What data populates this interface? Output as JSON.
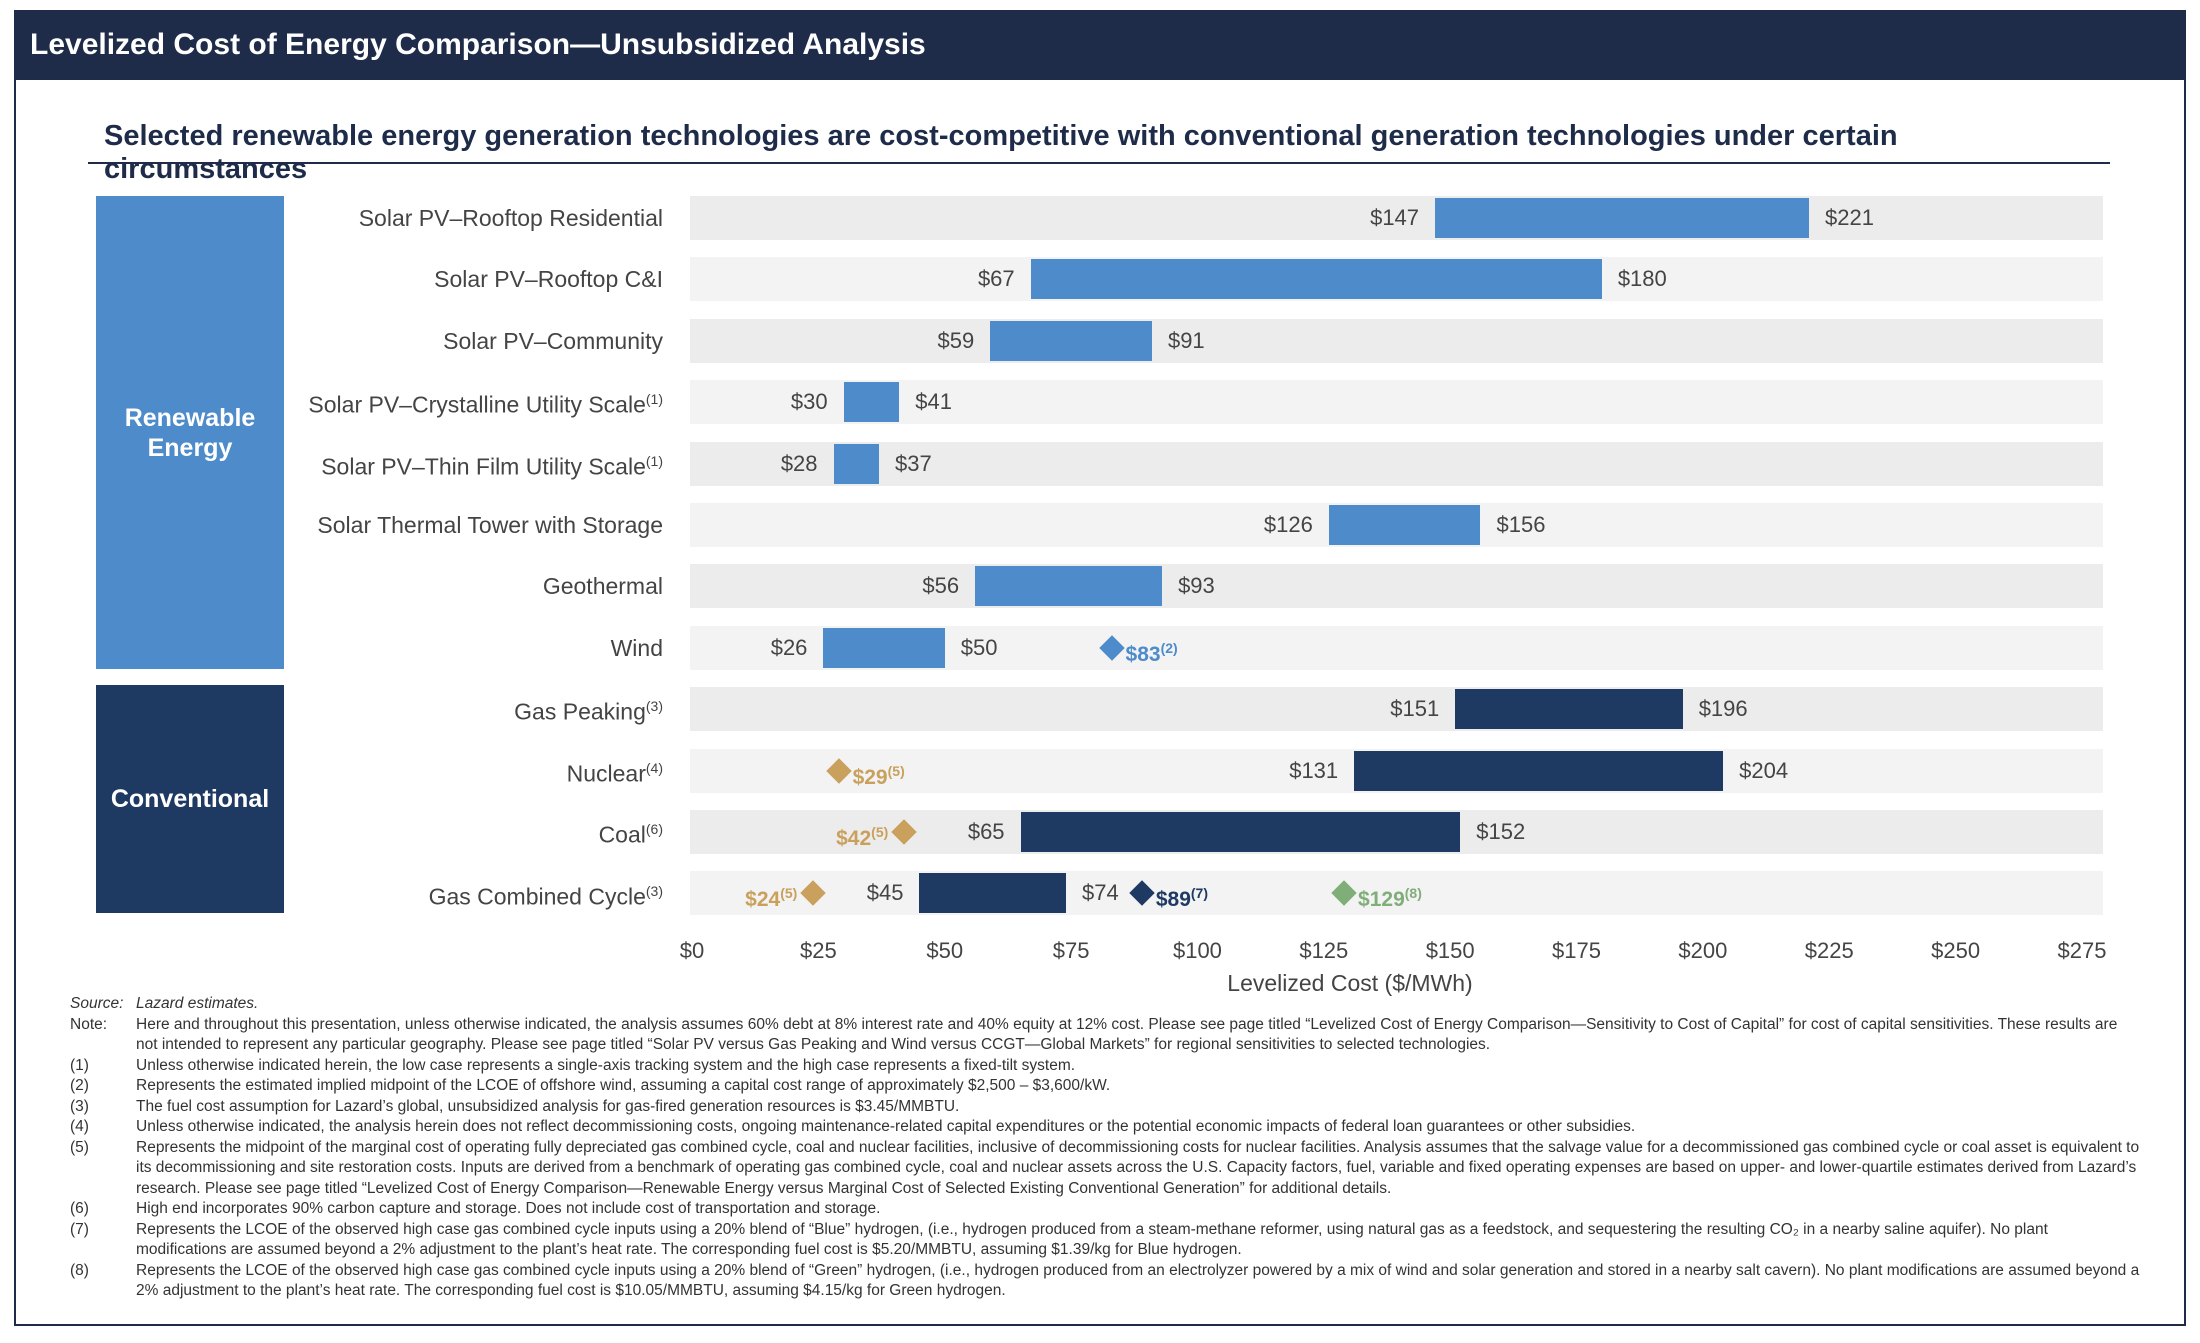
{
  "header": {
    "title": "Levelized Cost of Energy Comparison—Unsubsidized Analysis"
  },
  "subtitle": "Selected renewable energy generation technologies are cost-competitive with conventional generation technologies under certain circumstances",
  "groups": [
    {
      "label": "Renewable Energy",
      "color": "#4d8bcb"
    },
    {
      "label": "Conventional",
      "color": "#1e3a63"
    }
  ],
  "colors": {
    "renewable": "#4d8bcb",
    "conventional": "#1e3a63",
    "marker_gold": "#c9a05c",
    "marker_green": "#7fae78",
    "marker_blue": "#4d8bcb",
    "marker_navy": "#1e3a63"
  },
  "chart_data": {
    "type": "bar",
    "orientation": "horizontal-floating",
    "xlabel": "Levelized Cost ($/MWh)",
    "xlim": [
      0,
      275
    ],
    "xticks": [
      "$0",
      "$25",
      "$50",
      "$75",
      "$100",
      "$125",
      "$150",
      "$175",
      "$200",
      "$225",
      "$250",
      "$275"
    ],
    "rows": [
      {
        "label": "Solar PV–Rooftop Residential",
        "note": "",
        "group": "renewable",
        "low": 147,
        "high": 221,
        "low_label": "$147",
        "high_label": "$221",
        "markers": []
      },
      {
        "label": "Solar PV–Rooftop C&I",
        "note": "",
        "group": "renewable",
        "low": 67,
        "high": 180,
        "low_label": "$67",
        "high_label": "$180",
        "markers": []
      },
      {
        "label": "Solar PV–Community",
        "note": "",
        "group": "renewable",
        "low": 59,
        "high": 91,
        "low_label": "$59",
        "high_label": "$91",
        "markers": []
      },
      {
        "label": "Solar PV–Crystalline Utility Scale",
        "note": "(1)",
        "group": "renewable",
        "low": 30,
        "high": 41,
        "low_label": "$30",
        "high_label": "$41",
        "markers": []
      },
      {
        "label": "Solar PV–Thin Film Utility Scale",
        "note": "(1)",
        "group": "renewable",
        "low": 28,
        "high": 37,
        "low_label": "$28",
        "high_label": "$37",
        "markers": []
      },
      {
        "label": "Solar Thermal Tower with Storage",
        "note": "",
        "group": "renewable",
        "low": 126,
        "high": 156,
        "low_label": "$126",
        "high_label": "$156",
        "markers": []
      },
      {
        "label": "Geothermal",
        "note": "",
        "group": "renewable",
        "low": 56,
        "high": 93,
        "low_label": "$56",
        "high_label": "$93",
        "markers": []
      },
      {
        "label": "Wind",
        "note": "",
        "group": "renewable",
        "low": 26,
        "high": 50,
        "low_label": "$26",
        "high_label": "$50",
        "markers": [
          {
            "value": 83,
            "label": "$83",
            "note": "(2)",
            "color": "marker_blue",
            "side": "right"
          }
        ]
      },
      {
        "label": "Gas Peaking",
        "note": "(3)",
        "group": "conventional",
        "low": 151,
        "high": 196,
        "low_label": "$151",
        "high_label": "$196",
        "markers": []
      },
      {
        "label": "Nuclear",
        "note": "(4)",
        "group": "conventional",
        "low": 131,
        "high": 204,
        "low_label": "$131",
        "high_label": "$204",
        "markers": [
          {
            "value": 29,
            "label": "$29",
            "note": "(5)",
            "color": "marker_gold",
            "side": "right"
          }
        ]
      },
      {
        "label": "Coal",
        "note": "(6)",
        "group": "conventional",
        "low": 65,
        "high": 152,
        "low_label": "$65",
        "high_label": "$152",
        "markers": [
          {
            "value": 42,
            "label": "$42",
            "note": "(5)",
            "color": "marker_gold",
            "side": "left"
          }
        ]
      },
      {
        "label": "Gas Combined Cycle",
        "note": "(3)",
        "group": "conventional",
        "low": 45,
        "high": 74,
        "low_label": "$45",
        "high_label": "$74",
        "markers": [
          {
            "value": 24,
            "label": "$24",
            "note": "(5)",
            "color": "marker_gold",
            "side": "left"
          },
          {
            "value": 89,
            "label": "$89",
            "note": "(7)",
            "color": "marker_navy",
            "side": "right"
          },
          {
            "value": 129,
            "label": "$129",
            "note": "(8)",
            "color": "marker_green",
            "side": "right"
          }
        ]
      }
    ]
  },
  "notes": [
    {
      "key": "Source:",
      "text": "Lazard estimates."
    },
    {
      "key": "Note:",
      "text": "Here and throughout this presentation, unless otherwise indicated, the analysis assumes 60% debt at 8% interest rate and 40% equity at 12% cost. Please see page titled “Levelized Cost of Energy Comparison—Sensitivity to Cost of Capital” for cost of capital sensitivities. These results are not intended to represent any particular geography. Please see page titled “Solar PV versus Gas Peaking and Wind versus CCGT—Global Markets” for regional sensitivities to selected technologies."
    },
    {
      "key": "(1)",
      "text": "Unless otherwise indicated herein, the low case represents a single-axis tracking system and the high case represents a fixed-tilt system."
    },
    {
      "key": "(2)",
      "text": "Represents the estimated implied midpoint of the LCOE of offshore wind, assuming a capital cost range of approximately $2,500 – $3,600/kW."
    },
    {
      "key": "(3)",
      "text": "The fuel cost assumption for Lazard’s global, unsubsidized analysis for gas-fired generation resources is $3.45/MMBTU."
    },
    {
      "key": "(4)",
      "text": "Unless otherwise indicated, the analysis herein does not reflect decommissioning costs, ongoing maintenance-related capital expenditures or the potential economic impacts of federal loan guarantees or other subsidies."
    },
    {
      "key": "(5)",
      "text": "Represents the midpoint of the marginal cost of operating fully depreciated gas combined cycle, coal and nuclear facilities, inclusive of decommissioning costs for nuclear facilities. Analysis assumes that the salvage value for a decommissioned gas combined cycle or coal asset is equivalent to its decommissioning and site restoration costs. Inputs are derived from a benchmark of operating gas combined cycle, coal and nuclear assets across the U.S. Capacity factors, fuel, variable and fixed operating expenses are based on upper- and lower-quartile estimates derived from Lazard’s research. Please see page titled “Levelized Cost of Energy Comparison—Renewable Energy versus Marginal Cost of Selected Existing Conventional Generation” for additional details."
    },
    {
      "key": "(6)",
      "text": "High end incorporates 90% carbon capture and storage. Does not include cost of transportation and storage."
    },
    {
      "key": "(7)",
      "text": "Represents the LCOE of the observed high case gas combined cycle inputs using a 20% blend of “Blue” hydrogen, (i.e., hydrogen produced from a steam-methane reformer, using natural gas as a feedstock, and sequestering the resulting CO₂ in a nearby saline aquifer). No plant modifications are assumed beyond a 2% adjustment to the plant’s heat rate. The corresponding fuel cost is $5.20/MMBTU, assuming $1.39/kg for Blue hydrogen."
    },
    {
      "key": "(8)",
      "text": "Represents the LCOE of the observed high case gas combined cycle inputs using a 20% blend of “Green” hydrogen, (i.e., hydrogen produced from an electrolyzer powered by a mix of wind and solar generation and stored in a nearby salt cavern). No plant modifications are assumed beyond a 2% adjustment to the plant’s heat rate. The corresponding fuel cost is $10.05/MMBTU, assuming $4.15/kg for Green hydrogen."
    }
  ]
}
